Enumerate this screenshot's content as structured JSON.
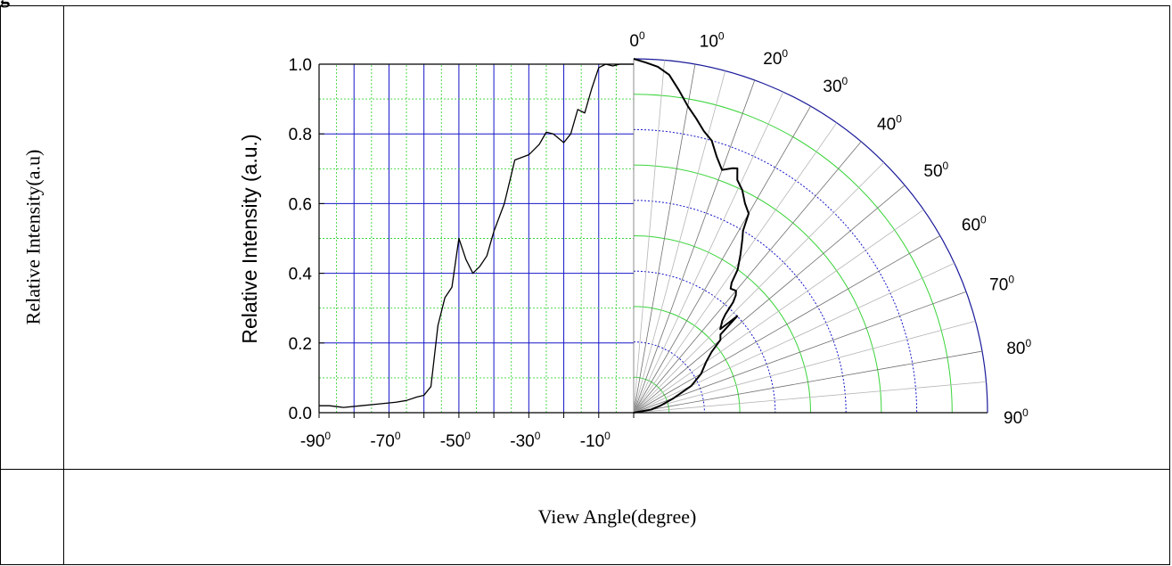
{
  "figure_tag": "g",
  "table": {
    "left_label": "Relative Intensity(a.u)",
    "bottom_label": "View Angle(degree)"
  },
  "chart_data": {
    "type": "line",
    "ylabel": "Relative Intensity (a.u.)",
    "xlabel": "",
    "xlim": [
      -90,
      0
    ],
    "ylim": [
      0,
      1.0
    ],
    "y_ticks": [
      "0.0",
      "0.2",
      "0.4",
      "0.6",
      "0.8",
      "1.0"
    ],
    "x_tick_labels": [
      {
        "base": "-90",
        "sup": "0",
        "value": -90
      },
      {
        "base": "-70",
        "sup": "0",
        "value": -70
      },
      {
        "base": "-50",
        "sup": "0",
        "value": -50
      },
      {
        "base": "-30",
        "sup": "0",
        "value": -30
      },
      {
        "base": "-10",
        "sup": "0",
        "value": -10
      }
    ],
    "polar_angle_labels": [
      {
        "base": "0",
        "sup": "0",
        "angle": 0
      },
      {
        "base": "10",
        "sup": "0",
        "angle": 10
      },
      {
        "base": "20",
        "sup": "0",
        "angle": 20
      },
      {
        "base": "30",
        "sup": "0",
        "angle": 30
      },
      {
        "base": "40",
        "sup": "0",
        "angle": 40
      },
      {
        "base": "50",
        "sup": "0",
        "angle": 50
      },
      {
        "base": "60",
        "sup": "0",
        "angle": 60
      },
      {
        "base": "70",
        "sup": "0",
        "angle": 70
      },
      {
        "base": "80",
        "sup": "0",
        "angle": 80
      },
      {
        "base": "90",
        "sup": "0",
        "angle": 90
      }
    ],
    "grid": true,
    "series": [
      {
        "plot": "cartesian",
        "x": [
          -90,
          -87,
          -83,
          -78,
          -73,
          -68,
          -65,
          -62,
          -60,
          -58,
          -56,
          -54,
          -52,
          -50,
          -48,
          -46,
          -44,
          -42,
          -40,
          -37,
          -34,
          -30,
          -27,
          -25,
          -23,
          -20,
          -18,
          -16,
          -14,
          -12,
          -10,
          -8,
          -6,
          -4,
          -2,
          0
        ],
        "y": [
          0.02,
          0.02,
          0.015,
          0.02,
          0.025,
          0.03,
          0.035,
          0.045,
          0.05,
          0.075,
          0.25,
          0.33,
          0.36,
          0.5,
          0.44,
          0.4,
          0.42,
          0.45,
          0.52,
          0.6,
          0.725,
          0.74,
          0.77,
          0.805,
          0.8,
          0.775,
          0.8,
          0.87,
          0.86,
          0.93,
          0.99,
          1.0,
          0.995,
          1.0,
          1.0,
          1.0
        ]
      },
      {
        "plot": "polar",
        "angle": [
          0,
          2,
          4,
          6,
          8,
          10,
          12,
          14,
          16,
          18,
          20,
          22,
          23,
          24,
          26,
          28,
          30,
          31,
          32,
          34,
          36,
          37,
          38,
          40,
          41,
          42,
          43,
          44,
          45,
          46,
          47,
          48,
          50,
          52,
          55,
          60,
          65,
          70,
          75,
          80,
          90
        ],
        "r": [
          1.0,
          0.99,
          0.98,
          0.96,
          0.92,
          0.88,
          0.85,
          0.82,
          0.8,
          0.76,
          0.73,
          0.745,
          0.75,
          0.72,
          0.7,
          0.67,
          0.65,
          0.6,
          0.58,
          0.54,
          0.5,
          0.46,
          0.445,
          0.45,
          0.44,
          0.42,
          0.38,
          0.36,
          0.35,
          0.34,
          0.4,
          0.33,
          0.32,
          0.28,
          0.25,
          0.22,
          0.18,
          0.12,
          0.08,
          0.05,
          0.0
        ]
      }
    ]
  }
}
